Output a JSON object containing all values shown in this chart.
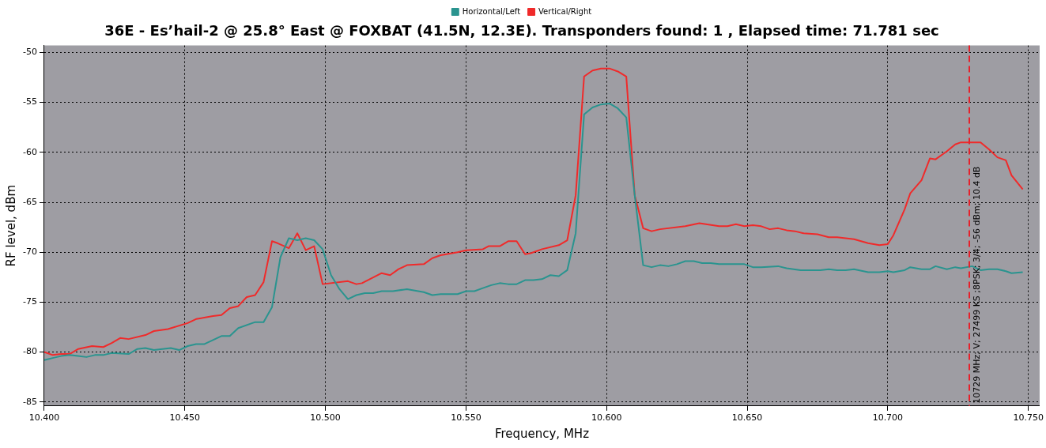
{
  "chart_data": {
    "type": "line",
    "title": "36E - Es’hail-2 @ 25.8° East @ FOXBAT (41.5N, 12.3E). Transponders found: 1 , Elapsed time: 71.781 sec",
    "xlabel": "Frequency, MHz",
    "ylabel": "RF level, dBm",
    "xlim": [
      10.4,
      10.754
    ],
    "ylim": [
      -85.4,
      -49.3
    ],
    "xticks": [
      {
        "value": 10.4,
        "label": "10.400"
      },
      {
        "value": 10.45,
        "label": "10.450"
      },
      {
        "value": 10.5,
        "label": "10.500"
      },
      {
        "value": 10.55,
        "label": "10.550"
      },
      {
        "value": 10.6,
        "label": "10.600"
      },
      {
        "value": 10.65,
        "label": "10.650"
      },
      {
        "value": 10.7,
        "label": "10.700"
      },
      {
        "value": 10.75,
        "label": "10.750"
      }
    ],
    "yticks": [
      -85,
      -80,
      -75,
      -70,
      -65,
      -60,
      -55,
      -50
    ],
    "grid": true,
    "legend": "top",
    "marker": "none",
    "line_style": "solid",
    "ref_lines": [
      {
        "axis": "x",
        "value": 10.729,
        "label": "10729 MHz; V; 27499 KS ;8PSK; 3/4; -56 dBm; 10.4 dB",
        "color": "#e8202a",
        "line_style": "dashed"
      }
    ],
    "series": [
      {
        "name": "Horizontal/Left",
        "color": "#2a948f",
        "x": [
          10.4,
          10.403,
          10.406,
          10.409,
          10.412,
          10.415,
          10.418,
          10.421,
          10.424,
          10.43,
          10.433,
          10.436,
          10.439,
          10.445,
          10.448,
          10.451,
          10.454,
          10.457,
          10.463,
          10.466,
          10.469,
          10.475,
          10.478,
          10.481,
          10.484,
          10.487,
          10.49,
          10.493,
          10.496,
          10.499,
          10.502,
          10.505,
          10.508,
          10.511,
          10.514,
          10.517,
          10.52,
          10.524,
          10.529,
          10.535,
          10.538,
          10.541,
          10.547,
          10.55,
          10.553,
          10.556,
          10.559,
          10.562,
          10.565,
          10.568,
          10.571,
          10.574,
          10.577,
          10.58,
          10.583,
          10.586,
          10.589,
          10.592,
          10.595,
          10.598,
          10.601,
          10.604,
          10.607,
          10.61,
          10.613,
          10.616,
          10.619,
          10.622,
          10.625,
          10.628,
          10.631,
          10.634,
          10.637,
          10.64,
          10.649,
          10.652,
          10.655,
          10.661,
          10.664,
          10.669,
          10.673,
          10.676,
          10.679,
          10.682,
          10.685,
          10.688,
          10.693,
          10.697,
          10.7,
          10.702,
          10.706,
          10.708,
          10.712,
          10.715,
          10.717,
          10.721,
          10.724,
          10.726,
          10.73,
          10.733,
          10.736,
          10.739,
          10.742,
          10.744,
          10.748
        ],
        "values": [
          -80.8,
          -80.6,
          -80.4,
          -80.3,
          -80.4,
          -80.5,
          -80.3,
          -80.3,
          -80.1,
          -80.2,
          -79.7,
          -79.6,
          -79.8,
          -79.6,
          -79.8,
          -79.4,
          -79.2,
          -79.2,
          -78.4,
          -78.4,
          -77.6,
          -77.0,
          -77.0,
          -75.5,
          -70.5,
          -68.6,
          -68.8,
          -68.6,
          -68.8,
          -69.7,
          -72.3,
          -73.7,
          -74.7,
          -74.3,
          -74.1,
          -74.1,
          -73.9,
          -73.9,
          -73.7,
          -74.0,
          -74.3,
          -74.2,
          -74.2,
          -73.9,
          -73.9,
          -73.6,
          -73.3,
          -73.1,
          -73.2,
          -73.2,
          -72.8,
          -72.8,
          -72.7,
          -72.3,
          -72.4,
          -71.8,
          -68.1,
          -56.2,
          -55.5,
          -55.2,
          -55.1,
          -55.6,
          -56.5,
          -64.3,
          -71.3,
          -71.5,
          -71.3,
          -71.4,
          -71.2,
          -70.9,
          -70.9,
          -71.1,
          -71.1,
          -71.2,
          -71.2,
          -71.5,
          -71.5,
          -71.4,
          -71.6,
          -71.8,
          -71.8,
          -71.8,
          -71.7,
          -71.8,
          -71.8,
          -71.7,
          -72.0,
          -72.0,
          -71.9,
          -72.0,
          -71.8,
          -71.5,
          -71.7,
          -71.7,
          -71.4,
          -71.7,
          -71.5,
          -71.6,
          -71.4,
          -71.8,
          -71.7,
          -71.7,
          -71.9,
          -72.1,
          -72.0
        ]
      },
      {
        "name": "Vertical/Right",
        "color": "#f02a2a",
        "x": [
          10.4,
          10.403,
          10.406,
          10.409,
          10.412,
          10.417,
          10.421,
          10.424,
          10.427,
          10.43,
          10.436,
          10.439,
          10.444,
          10.451,
          10.454,
          10.46,
          10.463,
          10.466,
          10.469,
          10.472,
          10.475,
          10.478,
          10.481,
          10.483,
          10.487,
          10.49,
          10.493,
          10.496,
          10.499,
          10.508,
          10.511,
          10.513,
          10.52,
          10.523,
          10.526,
          10.529,
          10.535,
          10.538,
          10.541,
          10.547,
          10.55,
          10.556,
          10.558,
          10.562,
          10.565,
          10.568,
          10.571,
          10.573,
          10.577,
          10.583,
          10.586,
          10.589,
          10.592,
          10.595,
          10.598,
          10.601,
          10.604,
          10.607,
          10.61,
          10.613,
          10.616,
          10.619,
          10.628,
          10.633,
          10.64,
          10.643,
          10.646,
          10.649,
          10.652,
          10.655,
          10.658,
          10.661,
          10.664,
          10.667,
          10.67,
          10.675,
          10.679,
          10.682,
          10.685,
          10.688,
          10.693,
          10.697,
          10.7,
          10.702,
          10.706,
          10.708,
          10.712,
          10.715,
          10.717,
          10.721,
          10.724,
          10.726,
          10.73,
          10.733,
          10.736,
          10.739,
          10.742,
          10.744,
          10.748
        ],
        "values": [
          -80.0,
          -80.3,
          -80.2,
          -80.2,
          -79.7,
          -79.4,
          -79.5,
          -79.1,
          -78.6,
          -78.7,
          -78.3,
          -77.9,
          -77.7,
          -77.1,
          -76.7,
          -76.4,
          -76.3,
          -75.6,
          -75.4,
          -74.5,
          -74.3,
          -73.0,
          -68.9,
          -69.1,
          -69.6,
          -68.1,
          -69.8,
          -69.4,
          -73.2,
          -72.9,
          -73.2,
          -73.1,
          -72.1,
          -72.3,
          -71.7,
          -71.3,
          -71.2,
          -70.6,
          -70.3,
          -70.0,
          -69.8,
          -69.7,
          -69.4,
          -69.4,
          -68.9,
          -68.9,
          -70.2,
          -70.1,
          -69.7,
          -69.3,
          -68.8,
          -64.3,
          -52.4,
          -51.8,
          -51.6,
          -51.6,
          -51.9,
          -52.4,
          -64.3,
          -67.6,
          -67.9,
          -67.7,
          -67.4,
          -67.1,
          -67.4,
          -67.4,
          -67.2,
          -67.4,
          -67.3,
          -67.4,
          -67.7,
          -67.6,
          -67.8,
          -67.9,
          -68.1,
          -68.2,
          -68.5,
          -68.5,
          -68.6,
          -68.7,
          -69.1,
          -69.3,
          -69.2,
          -68.3,
          -65.7,
          -64.1,
          -62.8,
          -60.6,
          -60.7,
          -59.9,
          -59.2,
          -59.0,
          -59.0,
          -59.0,
          -59.7,
          -60.5,
          -60.8,
          -62.3,
          -63.7
        ]
      }
    ]
  }
}
